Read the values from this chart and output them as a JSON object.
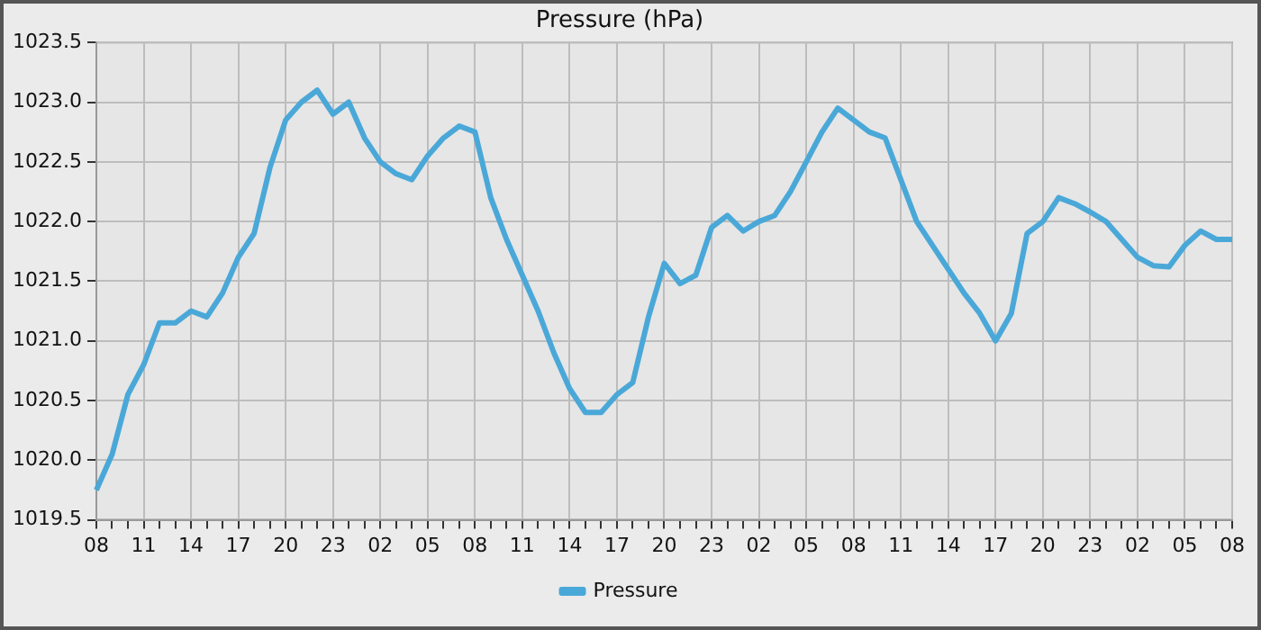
{
  "chart_data": {
    "type": "line",
    "title": "Pressure (hPa)",
    "categories": [
      "08",
      null,
      null,
      "11",
      null,
      null,
      "14",
      null,
      null,
      "17",
      null,
      null,
      "20",
      null,
      null,
      "23",
      null,
      null,
      "02",
      null,
      null,
      "05",
      null,
      null,
      "08",
      null,
      null,
      "11",
      null,
      null,
      "14",
      null,
      null,
      "17",
      null,
      null,
      "20",
      null,
      null,
      "23",
      null,
      null,
      "02",
      null,
      null,
      "05",
      null,
      null,
      "08",
      null,
      null,
      "11",
      null,
      null,
      "14",
      null,
      null,
      "17",
      null,
      null,
      "20",
      null,
      null,
      "23",
      null,
      null,
      "02",
      null,
      null,
      "05",
      null,
      null,
      "08"
    ],
    "series": [
      {
        "name": "Pressure",
        "color": "#4aa8d8",
        "values": [
          1019.75,
          1020.05,
          1020.55,
          1020.8,
          1021.15,
          1021.15,
          1021.25,
          1021.2,
          1021.4,
          1021.7,
          1021.9,
          1022.45,
          1022.85,
          1023.0,
          1023.1,
          1022.9,
          1023.0,
          1022.7,
          1022.5,
          1022.4,
          1022.35,
          1022.55,
          1022.7,
          1022.8,
          1022.75,
          1022.2,
          1021.85,
          1021.55,
          1021.25,
          1020.9,
          1020.6,
          1020.4,
          1020.4,
          1020.55,
          1020.65,
          1021.2,
          1021.65,
          1021.48,
          1021.55,
          1021.95,
          1022.05,
          1021.92,
          1022.0,
          1022.05,
          1022.25,
          1022.5,
          1022.75,
          1022.95,
          1022.85,
          1022.75,
          1022.7,
          1022.35,
          1022.0,
          1021.8,
          1021.6,
          1021.4,
          1021.23,
          1021.0,
          1021.23,
          1021.9,
          1022.0,
          1022.2,
          1022.15,
          1022.08,
          1022.0,
          1021.85,
          1021.7,
          1021.63,
          1021.62,
          1021.8,
          1021.92,
          1021.85,
          1021.85
        ]
      }
    ],
    "ylim": [
      1019.5,
      1023.5
    ],
    "yticks": [
      1019.5,
      {
        "value": 1020,
        "label": "1020.0"
      },
      1020.5,
      {
        "value": 1021,
        "label": "1021.0"
      },
      1021.5,
      {
        "value": 1022,
        "label": "1022.0"
      },
      1022.5,
      {
        "value": 1023,
        "label": "1023.0"
      },
      1023.5
    ],
    "grid": true,
    "legend": "bottom",
    "marker": "none",
    "line_style": "solid"
  }
}
